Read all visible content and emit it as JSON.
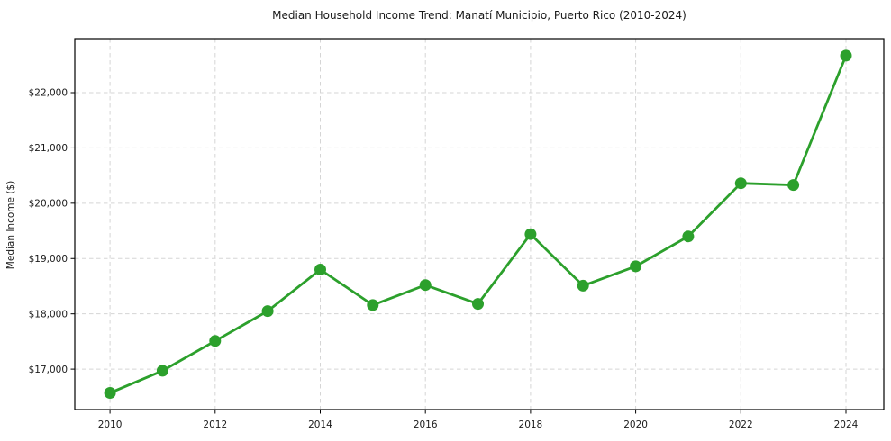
{
  "chart_data": {
    "type": "line",
    "title": "Median Household Income Trend: Manatí Municipio, Puerto Rico (2010-2024)",
    "xlabel": "",
    "ylabel": "Median Income ($)",
    "series_name": "Median household income",
    "x": [
      2010,
      2011,
      2012,
      2013,
      2014,
      2015,
      2016,
      2017,
      2018,
      2019,
      2020,
      2021,
      2022,
      2023,
      2024
    ],
    "values": [
      16570,
      16970,
      17510,
      18050,
      18800,
      18160,
      18520,
      18180,
      19440,
      18510,
      18860,
      19400,
      20360,
      20330,
      22670
    ],
    "xticks": [
      2010,
      2012,
      2014,
      2016,
      2018,
      2020,
      2022,
      2024
    ],
    "xtick_labels": [
      "2010",
      "2012",
      "2014",
      "2016",
      "2018",
      "2020",
      "2022",
      "2024"
    ],
    "ytick_values": [
      17000,
      18000,
      19000,
      20000,
      21000,
      22000
    ],
    "ytick_labels": [
      "$17,000",
      "$18,000",
      "$19,000",
      "$20,000",
      "$21,000",
      "$22,000"
    ],
    "xlim": [
      2009.33,
      2024.72
    ],
    "ylim": [
      16269,
      22977
    ],
    "grid": true,
    "grid_style": "dashed",
    "legend_position": "none",
    "colors": {
      "line": "#2ca02c",
      "marker": "#2ca02c",
      "grid": "#d5d5d5",
      "frame": "#000000",
      "tick": "#000000",
      "text": "#1a1a1a",
      "background": "#ffffff"
    },
    "marker_shape": "circle"
  }
}
